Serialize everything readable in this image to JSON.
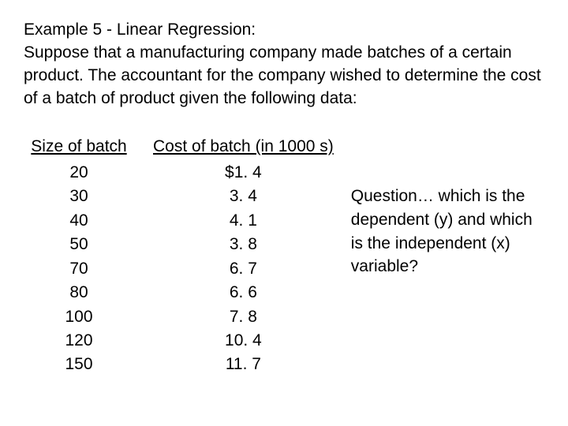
{
  "header": {
    "title": "Example 5 - Linear Regression:",
    "description": "Suppose that a manufacturing company made batches of a certain product.  The accountant for the company wished to determine the cost of a batch of product given the following data:"
  },
  "table": {
    "type": "table",
    "columns": [
      {
        "label": "Size of batch"
      },
      {
        "label": "Cost of batch (in 1000 s)"
      }
    ],
    "size_values": [
      "20",
      "30",
      "40",
      "50",
      "70",
      "80",
      "100",
      "120",
      "150"
    ],
    "cost_values": [
      "$1. 4",
      "3. 4",
      "4. 1",
      "3. 8",
      "6. 7",
      "6. 6",
      "7. 8",
      "10. 4",
      "11. 7"
    ],
    "text_color": "#000000",
    "background_color": "#ffffff",
    "font_size": 21
  },
  "question": {
    "text": "Question… which is the dependent (y) and which is the independent (x) variable?"
  }
}
